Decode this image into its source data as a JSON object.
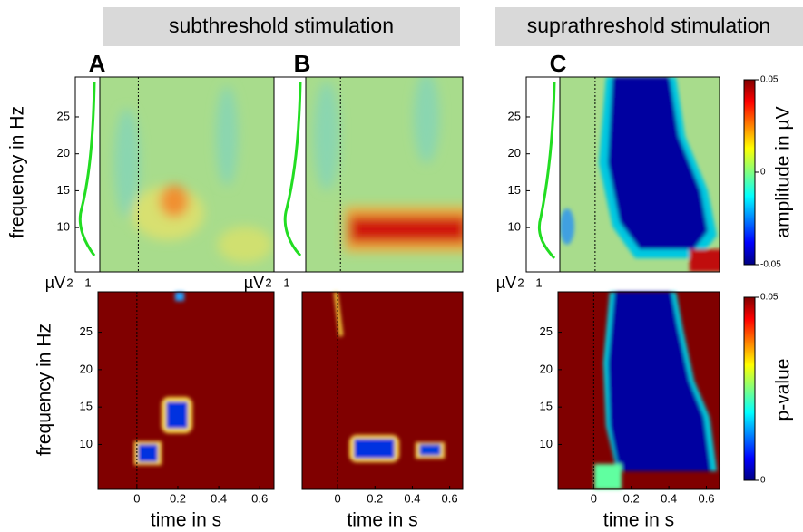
{
  "headers": [
    "subthreshold stimulation",
    "suprathreshold stimulation"
  ],
  "panel_labels": [
    "A",
    "B",
    "C"
  ],
  "y_axis_label": "frequency in Hz",
  "x_axis_label": "time in s",
  "ylim": [
    4,
    30.4
  ],
  "yticks": [
    10,
    15,
    20,
    25
  ],
  "xlim": [
    -0.19,
    0.67
  ],
  "xticks": [
    0,
    0.2,
    0.4,
    0.6
  ],
  "spectrum_unit": "µV",
  "spectrum_ticks": [
    2,
    1
  ],
  "colorbar_top": {
    "label": "amplitude in µV",
    "lim": [
      -0.05,
      0.05
    ],
    "ticks": [
      0.05,
      0,
      -0.05
    ]
  },
  "colorbar_bottom": {
    "label": "p-value",
    "lim": [
      0,
      0.05
    ],
    "ticks": [
      0.05,
      0
    ]
  }
}
